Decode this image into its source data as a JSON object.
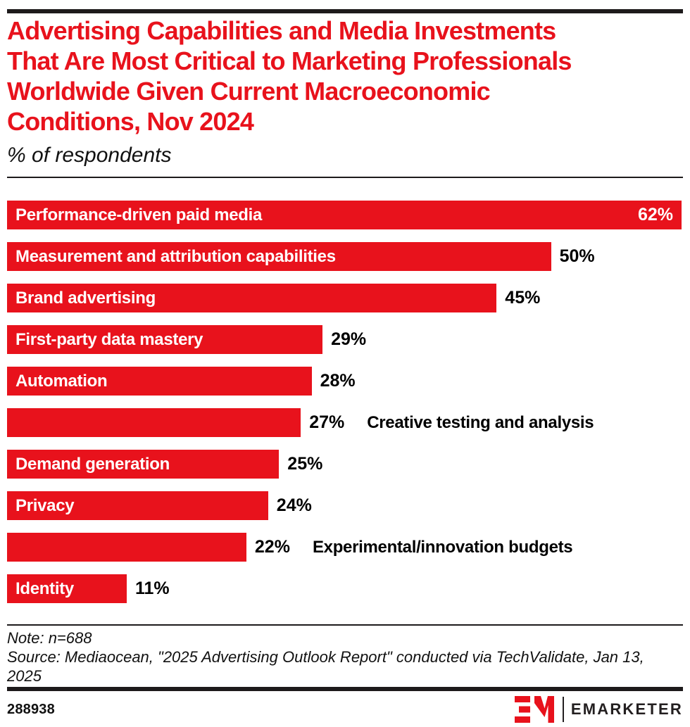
{
  "header": {
    "title_lines": [
      "Advertising Capabilities and Media Investments",
      "That Are Most Critical to Marketing Professionals",
      "Worldwide Given Current Macroeconomic",
      "Conditions, Nov 2024"
    ],
    "subtitle": "% of respondents"
  },
  "chart_data": {
    "type": "bar",
    "orientation": "horizontal",
    "title": "Advertising Capabilities and Media Investments That Are Most Critical to Marketing Professionals Worldwide Given Current Macroeconomic Conditions, Nov 2024",
    "subtitle": "% of respondents",
    "unit": "%",
    "xlim": [
      0,
      62
    ],
    "grid": false,
    "legend": false,
    "categories": [
      "Performance-driven paid media",
      "Measurement and attribution capabilities",
      "Brand advertising",
      "First-party data mastery",
      "Automation",
      "Creative testing and analysis",
      "Demand generation",
      "Privacy",
      "Experimental/innovation budgets",
      "Identity"
    ],
    "values": [
      62,
      50,
      45,
      29,
      28,
      27,
      25,
      24,
      22,
      11
    ],
    "bars": [
      {
        "label": "Performance-driven paid media",
        "value": 62,
        "value_label": "62%",
        "label_placement": "inside",
        "value_placement": "inside"
      },
      {
        "label": "Measurement and attribution capabilities",
        "value": 50,
        "value_label": "50%",
        "label_placement": "inside",
        "value_placement": "outside"
      },
      {
        "label": "Brand advertising",
        "value": 45,
        "value_label": "45%",
        "label_placement": "inside",
        "value_placement": "outside"
      },
      {
        "label": "First-party data mastery",
        "value": 29,
        "value_label": "29%",
        "label_placement": "inside",
        "value_placement": "outside"
      },
      {
        "label": "Automation",
        "value": 28,
        "value_label": "28%",
        "label_placement": "inside",
        "value_placement": "outside"
      },
      {
        "label": "Creative testing and analysis",
        "value": 27,
        "value_label": "27%",
        "label_placement": "outside",
        "value_placement": "outside"
      },
      {
        "label": "Demand generation",
        "value": 25,
        "value_label": "25%",
        "label_placement": "inside",
        "value_placement": "outside"
      },
      {
        "label": "Privacy",
        "value": 24,
        "value_label": "24%",
        "label_placement": "inside",
        "value_placement": "outside"
      },
      {
        "label": "Experimental/innovation budgets",
        "value": 22,
        "value_label": "22%",
        "label_placement": "outside",
        "value_placement": "outside"
      },
      {
        "label": "Identity",
        "value": 11,
        "value_label": "11%",
        "label_placement": "inside",
        "value_placement": "outside"
      }
    ],
    "bar_color": "#e8121c",
    "inside_text_color": "#ffffff",
    "outside_text_color": "#000000"
  },
  "footer": {
    "note": "Note: n=688",
    "source": "Source: Mediaocean, \"2025 Advertising Outlook Report\" conducted via TechValidate, Jan 13, 2025",
    "chart_id": "288938"
  },
  "branding": {
    "logo_mark": "EM",
    "logo_text": "EMARKETER",
    "logo_color": "#e8121c",
    "logo_text_color": "#231f20"
  }
}
